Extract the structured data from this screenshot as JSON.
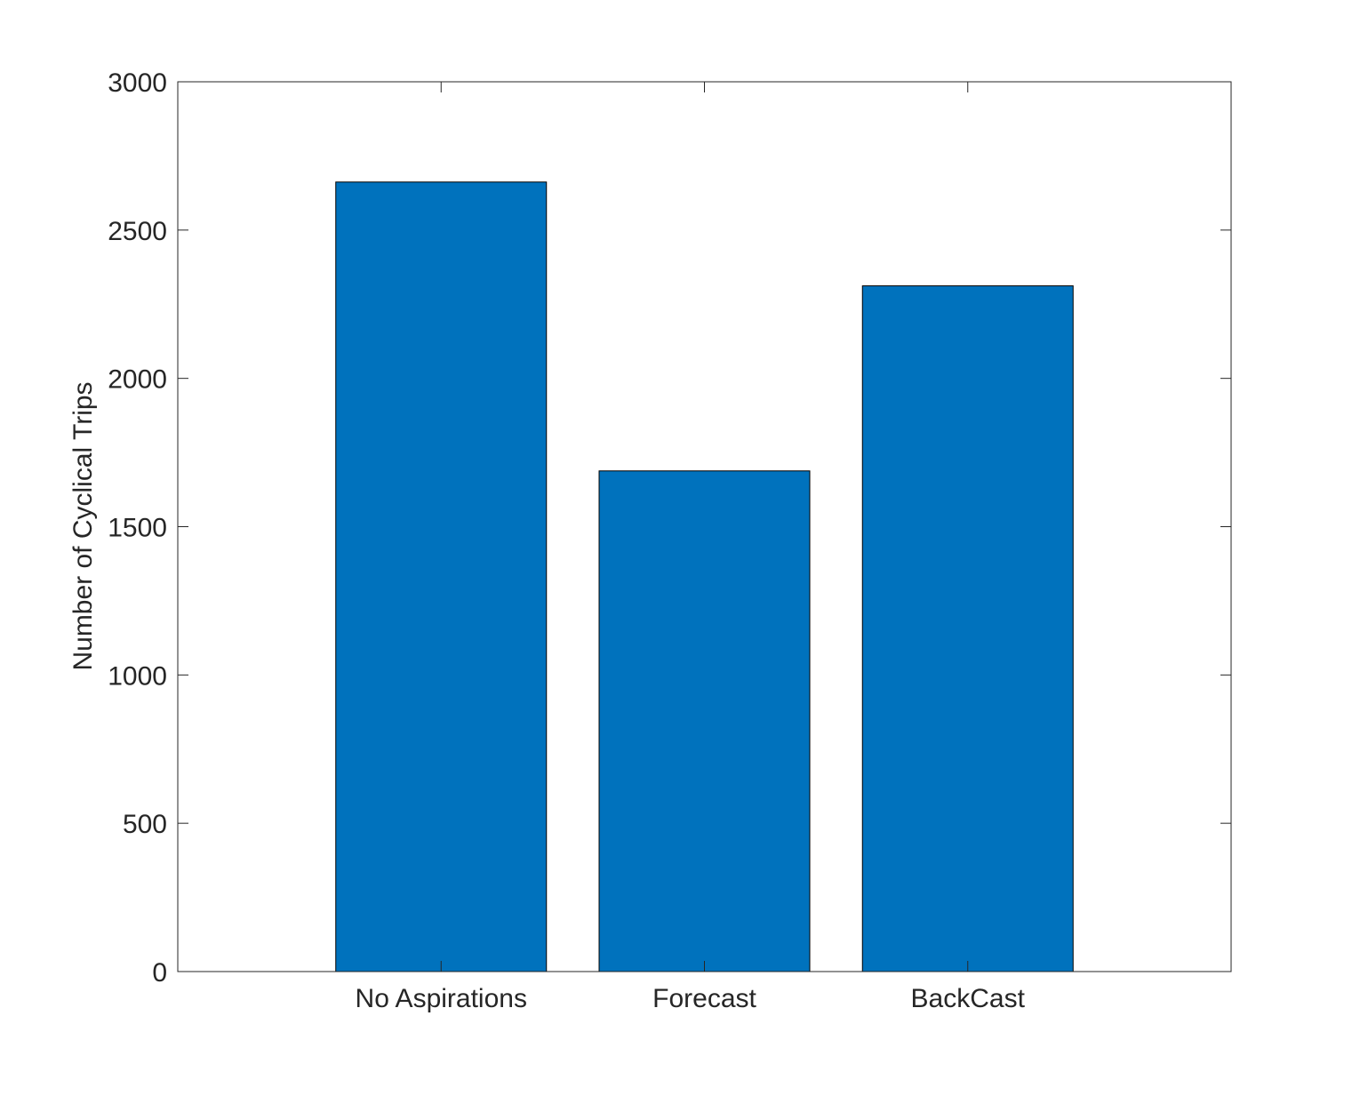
{
  "chart_data": {
    "type": "bar",
    "title": "",
    "xlabel": "",
    "ylabel": "Number of Cyclical Trips",
    "categories": [
      "No Aspirations",
      "Forecast",
      "BackCast"
    ],
    "values": [
      2662,
      1688,
      2312
    ],
    "ylim": [
      0,
      3000
    ],
    "yticks": [
      0,
      500,
      1000,
      1500,
      2000,
      2500,
      3000
    ],
    "ytick_labels": [
      "0",
      "500",
      "1000",
      "1500",
      "2000",
      "2500",
      "3000"
    ],
    "grid": false,
    "legend": null,
    "bar_color": "#0072BD",
    "edge_color": "#000000",
    "axis_color": "#262626"
  }
}
